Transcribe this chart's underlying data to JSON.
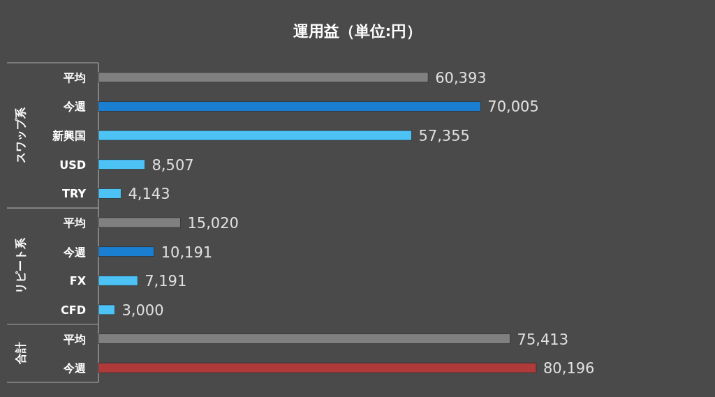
{
  "chart_data": {
    "type": "bar",
    "orientation": "horizontal",
    "title": "運用益（単位:円）",
    "categories": [
      "平均",
      "今週",
      "新興国",
      "USD",
      "TRY",
      "平均",
      "今週",
      "FX",
      "CFD",
      "平均",
      "今週"
    ],
    "values": [
      60393,
      70005,
      57355,
      8507,
      4143,
      15020,
      10191,
      7191,
      3000,
      75413,
      80196
    ],
    "value_labels": [
      "60,393",
      "70,005",
      "57,355",
      "8,507",
      "4,143",
      "15,020",
      "10,191",
      "7,191",
      "3,000",
      "75,413",
      "80,196"
    ],
    "colors": [
      "#808080",
      "#1a7fd0",
      "#4cc2f5",
      "#4cc2f5",
      "#4cc2f5",
      "#808080",
      "#1a7fd0",
      "#4cc2f5",
      "#4cc2f5",
      "#808080",
      "#b03a3a"
    ],
    "annotations": [
      "スワップ系",
      "リピート系",
      "合計"
    ]
  }
}
